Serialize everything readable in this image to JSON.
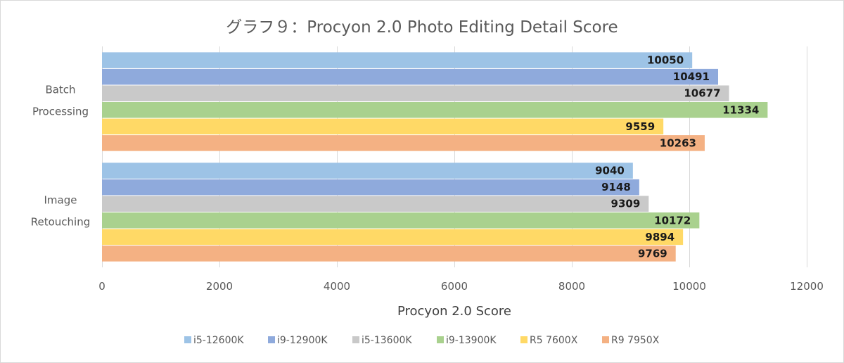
{
  "chart_data": {
    "type": "bar",
    "orientation": "horizontal",
    "title": "グラフ９：Procyon 2.0 Photo Editing Detail Score",
    "xlabel": "Procyon 2.0 Score",
    "ylabel": "",
    "xlim": [
      0,
      12000
    ],
    "xticks": [
      0,
      2000,
      4000,
      6000,
      8000,
      10000,
      12000
    ],
    "grid": true,
    "legend_position": "bottom",
    "categories": [
      {
        "name": "Batch Processing",
        "lines": [
          "Batch",
          "Processing"
        ]
      },
      {
        "name": "Image Retouching",
        "lines": [
          "Image",
          "Retouching"
        ]
      }
    ],
    "series": [
      {
        "name": "i5-12600K",
        "color": "#9dc3e6",
        "values": [
          10050,
          9040
        ]
      },
      {
        "name": "i9-12900K",
        "color": "#8faadc",
        "values": [
          10491,
          9148
        ]
      },
      {
        "name": "i5-13600K",
        "color": "#c9c9c9",
        "values": [
          10677,
          9309
        ]
      },
      {
        "name": "i9-13900K",
        "color": "#a9d18e",
        "values": [
          11334,
          10172
        ]
      },
      {
        "name": "R5 7600X",
        "color": "#ffd966",
        "values": [
          9559,
          9894
        ]
      },
      {
        "name": "R9 7950X",
        "color": "#f4b183",
        "values": [
          10263,
          9769
        ]
      }
    ]
  }
}
